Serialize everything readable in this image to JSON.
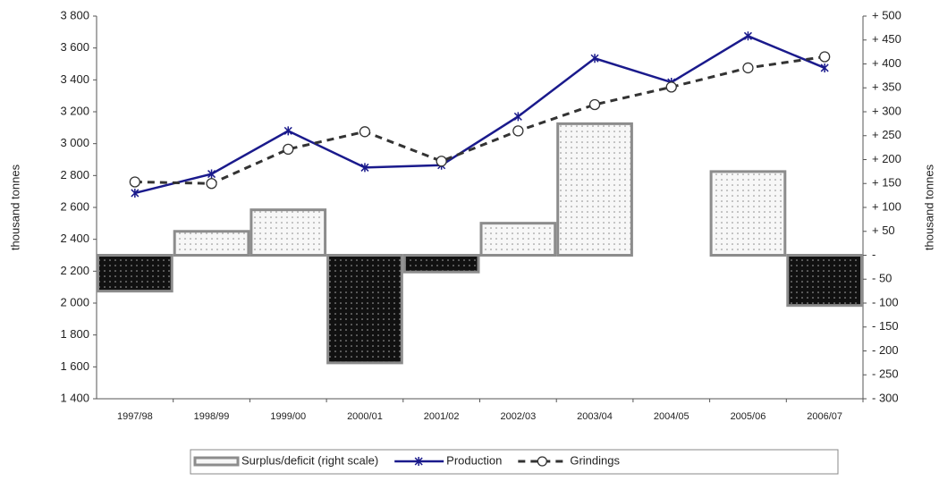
{
  "chart_data": {
    "type": "combo",
    "y_label": "thousand tonnes",
    "y2_label": "thousand tonnes",
    "categories": [
      "1997/98",
      "1998/99",
      "1999/00",
      "2000/01",
      "2001/02",
      "2002/03",
      "2003/04",
      "2004/05",
      "2005/06",
      "2006/07"
    ],
    "series": [
      {
        "name": "Surplus/deficit (right scale)",
        "type": "bar",
        "axis": "y2",
        "color": "#8c8c8c",
        "values": [
          -75,
          50,
          95,
          -225,
          -35,
          67,
          275,
          0,
          175,
          -105
        ]
      },
      {
        "name": "Production",
        "type": "line",
        "line_style": "solid",
        "marker": "asterisk",
        "color": "#1a1a8c",
        "values": [
          2690,
          2810,
          3080,
          2850,
          2865,
          3170,
          3535,
          3385,
          3675,
          3475
        ]
      },
      {
        "name": "Grindings",
        "type": "line",
        "line_style": "dashed",
        "marker": "circle",
        "color": "#333333",
        "values": [
          2760,
          2750,
          2965,
          3075,
          2890,
          3080,
          3245,
          3355,
          3475,
          3545
        ]
      }
    ],
    "ylim": [
      1400,
      3800
    ],
    "yticks": [
      {
        "value": 1400,
        "label": "1 400"
      },
      {
        "value": 1600,
        "label": "1 600"
      },
      {
        "value": 1800,
        "label": "1 800"
      },
      {
        "value": 2000,
        "label": "2 000"
      },
      {
        "value": 2200,
        "label": "2 200"
      },
      {
        "value": 2400,
        "label": "2 400"
      },
      {
        "value": 2600,
        "label": "2 600"
      },
      {
        "value": 2800,
        "label": "2 800"
      },
      {
        "value": 3000,
        "label": "3 000"
      },
      {
        "value": 3200,
        "label": "3 200"
      },
      {
        "value": 3400,
        "label": "3 400"
      },
      {
        "value": 3600,
        "label": "3 600"
      },
      {
        "value": 3800,
        "label": "3 800"
      }
    ],
    "y2lim": [
      -300,
      500
    ],
    "y2ticks": [
      {
        "value": -300,
        "label": "- 300"
      },
      {
        "value": -250,
        "label": "- 250"
      },
      {
        "value": -200,
        "label": "- 200"
      },
      {
        "value": -150,
        "label": "- 150"
      },
      {
        "value": -100,
        "label": "- 100"
      },
      {
        "value": -50,
        "label": "- 50"
      },
      {
        "value": 0,
        "label": "-"
      },
      {
        "value": 50,
        "label": "+ 50"
      },
      {
        "value": 100,
        "label": "+ 100"
      },
      {
        "value": 150,
        "label": "+ 150"
      },
      {
        "value": 200,
        "label": "+ 200"
      },
      {
        "value": 250,
        "label": "+ 250"
      },
      {
        "value": 300,
        "label": "+ 300"
      },
      {
        "value": 350,
        "label": "+ 350"
      },
      {
        "value": 400,
        "label": "+ 400"
      },
      {
        "value": 450,
        "label": "+ 450"
      },
      {
        "value": 500,
        "label": "+ 500"
      }
    ],
    "grid": false,
    "legend": "bottom"
  }
}
